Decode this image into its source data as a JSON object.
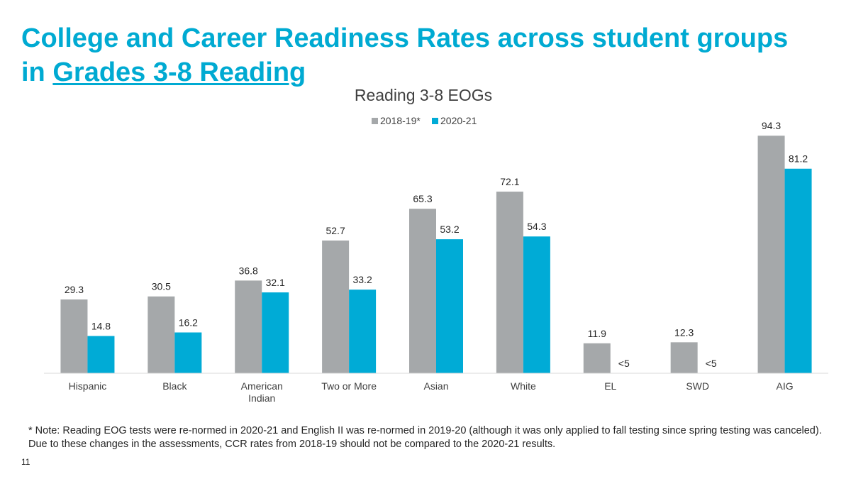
{
  "slide": {
    "title_main": "College and Career Readiness Rates across student groups",
    "title_in": "in",
    "title_link": "Grades 3-8 Reading",
    "footnote": "* Note: Reading EOG tests were re-normed in 2020-21 and English II was re-normed in 2019-20 (although it was only applied to fall testing since spring testing was canceled). Due to these changes in the assessments, CCR rates from 2018-19 should not be compared to the 2020-21 results.",
    "page_number": "11"
  },
  "colors": {
    "title": "#00aad2",
    "series_2018": "#a5a8aa",
    "series_2021": "#00abd6"
  },
  "chart_data": {
    "type": "bar",
    "title": "Reading 3-8 EOGs",
    "legend_position": "top",
    "grid": false,
    "ylim": [
      0,
      100
    ],
    "categories": [
      "Hispanic",
      "Black",
      "American Indian",
      "Two or More",
      "Asian",
      "White",
      "EL",
      "SWD",
      "AIG"
    ],
    "category_lines": [
      [
        "Hispanic"
      ],
      [
        "Black"
      ],
      [
        "American",
        "Indian"
      ],
      [
        "Two or More"
      ],
      [
        "Asian"
      ],
      [
        "White"
      ],
      [
        "EL"
      ],
      [
        "SWD"
      ],
      [
        "AIG"
      ]
    ],
    "series": [
      {
        "name": "2018-19*",
        "color": "#a5a8aa",
        "values": [
          29.3,
          30.5,
          36.8,
          52.7,
          65.3,
          72.1,
          11.9,
          12.3,
          94.3
        ],
        "labels": [
          "29.3",
          "30.5",
          "36.8",
          "52.7",
          "65.3",
          "72.1",
          "11.9",
          "12.3",
          "94.3"
        ]
      },
      {
        "name": "2020-21",
        "color": "#00abd6",
        "values": [
          14.8,
          16.2,
          32.1,
          33.2,
          53.2,
          54.3,
          null,
          null,
          81.2
        ],
        "labels": [
          "14.8",
          "16.2",
          "32.1",
          "33.2",
          "53.2",
          "54.3",
          "<5",
          "<5",
          "81.2"
        ]
      }
    ]
  }
}
